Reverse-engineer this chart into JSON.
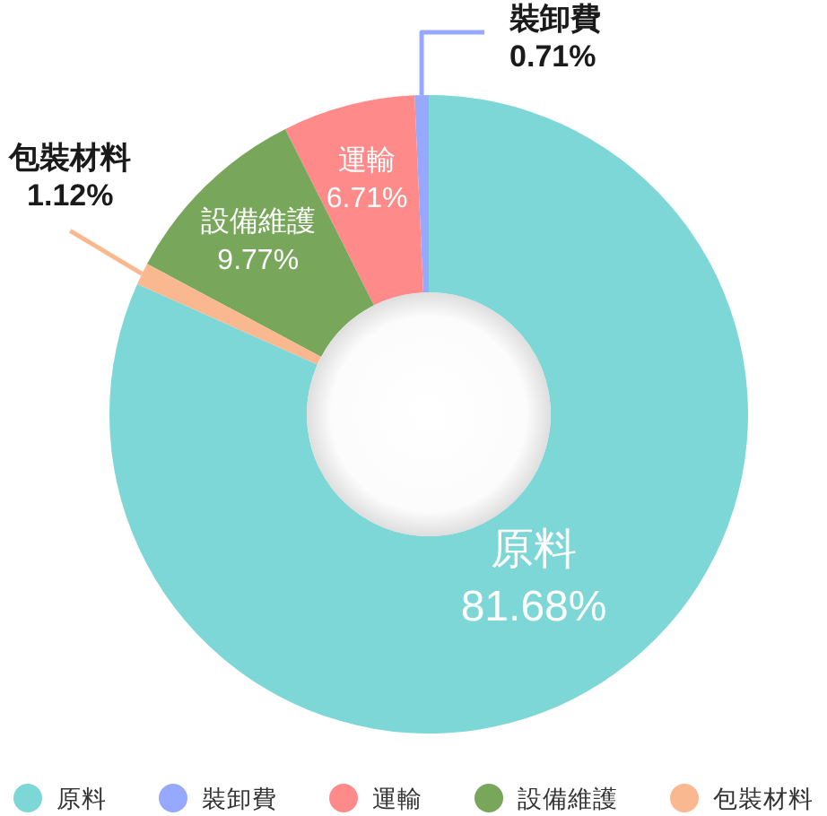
{
  "chart_data": {
    "type": "donut",
    "categories": [
      "原料",
      "裝卸費",
      "運輸",
      "設備維護",
      "包裝材料"
    ],
    "values": [
      81.68,
      0.71,
      6.71,
      9.77,
      1.12
    ],
    "value_labels": [
      "81.68%",
      "0.71%",
      "6.71%",
      "9.77%",
      "1.12%"
    ],
    "colors": [
      "#7dd7d7",
      "#96a9ff",
      "#ff8a8a",
      "#78a65a",
      "#f9b890"
    ],
    "legend": "bottom"
  }
}
